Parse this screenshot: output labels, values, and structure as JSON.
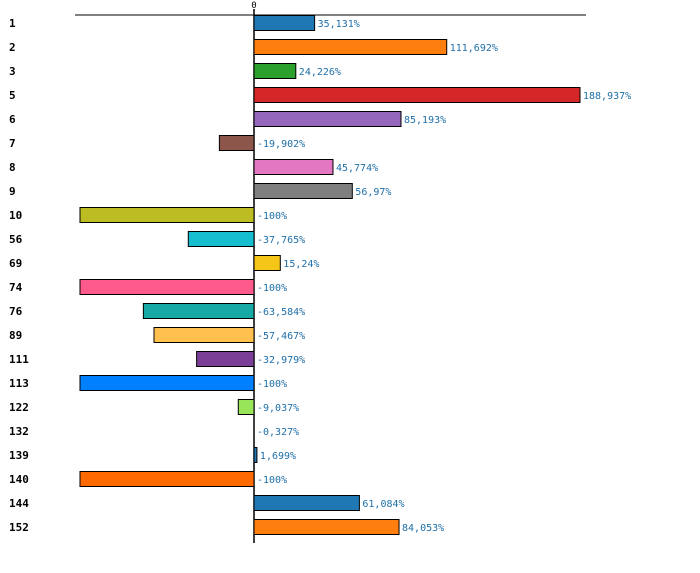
{
  "chart_data": {
    "type": "bar",
    "orientation": "horizontal",
    "title": "",
    "xlabel": "",
    "ylabel": "",
    "zero_label": "0",
    "xlim": [
      -100,
      188.937
    ],
    "legend": "none",
    "categories": [
      "1",
      "2",
      "3",
      "5",
      "6",
      "7",
      "8",
      "9",
      "10",
      "56",
      "69",
      "74",
      "76",
      "89",
      "111",
      "113",
      "122",
      "132",
      "139",
      "140",
      "144",
      "152"
    ],
    "values": [
      35.131,
      111.692,
      24.226,
      188.937,
      85.193,
      -19.902,
      45.774,
      56.97,
      -100,
      -37.765,
      15.24,
      -100,
      -63.584,
      -57.467,
      -32.979,
      -100,
      -9.037,
      -0.327,
      1.699,
      -100,
      61.084,
      84.053
    ],
    "value_labels": [
      "35,131%",
      "111,692%",
      "24,226%",
      "188,937%",
      "85,193%",
      "-19,902%",
      "45,774%",
      "56,97%",
      "-100%",
      "-37,765%",
      "15,24%",
      "-100%",
      "-63,584%",
      "-57,467%",
      "-32,979%",
      "-100%",
      "-9,037%",
      "-0,327%",
      "1,699%",
      "-100%",
      "61,084%",
      "84,053%"
    ],
    "colors": [
      "#1f77b4",
      "#ff7f0e",
      "#2ca02c",
      "#d62728",
      "#9467bd",
      "#8c564b",
      "#e377c2",
      "#7f7f7f",
      "#bcbd22",
      "#17becf",
      "#f5c518",
      "#ff5a8c",
      "#17a9a3",
      "#ffc04d",
      "#7b3f98",
      "#0080ff",
      "#99e55a",
      "#1f77b4",
      "#1f77b4",
      "#ff6a00",
      "#1f77b4",
      "#ff7f0e"
    ]
  }
}
